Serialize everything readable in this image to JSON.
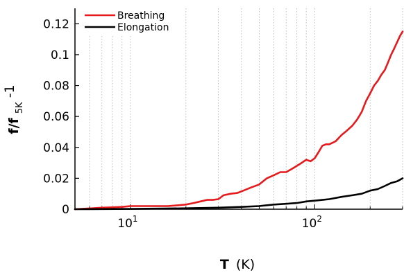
{
  "chart_data": {
    "type": "line",
    "xlabel": {
      "main": "T",
      "unit": "(K)"
    },
    "ylabel": {
      "f": "f/f",
      "sub": "5K",
      "tail": "-1"
    },
    "x_scale": "log",
    "xlim": [
      5,
      300
    ],
    "ylim": [
      0,
      0.13
    ],
    "grid": "vertical dotted (log minor ticks)",
    "legend_position": "top-left",
    "y_ticks": [
      "0",
      "0.02",
      "0.04",
      "0.06",
      "0.08",
      "0.1",
      "0.12"
    ],
    "x_ticks": [
      {
        "base": "10",
        "exp": "1"
      },
      {
        "base": "10",
        "exp": "2"
      }
    ],
    "series": [
      {
        "name": "Breathing",
        "color": "#e41a1c",
        "x": [
          5,
          6,
          7,
          8,
          9,
          10,
          12,
          14,
          16,
          18,
          20,
          22,
          24,
          26,
          28,
          30,
          32,
          35,
          38,
          41,
          45,
          50,
          55,
          60,
          65,
          70,
          75,
          80,
          85,
          90,
          95,
          100,
          105,
          110,
          115,
          120,
          125,
          130,
          140,
          150,
          160,
          170,
          180,
          190,
          200,
          210,
          220,
          230,
          240,
          250,
          260,
          270,
          280,
          290,
          300
        ],
        "y": [
          0.0,
          0.0005,
          0.001,
          0.0012,
          0.0015,
          0.002,
          0.002,
          0.002,
          0.002,
          0.0025,
          0.003,
          0.004,
          0.005,
          0.006,
          0.006,
          0.0065,
          0.009,
          0.01,
          0.0105,
          0.012,
          0.014,
          0.016,
          0.02,
          0.022,
          0.024,
          0.024,
          0.026,
          0.028,
          0.03,
          0.032,
          0.031,
          0.033,
          0.037,
          0.041,
          0.042,
          0.042,
          0.043,
          0.044,
          0.048,
          0.051,
          0.054,
          0.058,
          0.063,
          0.07,
          0.075,
          0.08,
          0.083,
          0.087,
          0.09,
          0.095,
          0.1,
          0.104,
          0.108,
          0.112,
          0.115
        ]
      },
      {
        "name": "Elongation",
        "color": "#000000",
        "x": [
          5,
          10,
          15,
          20,
          30,
          40,
          50,
          60,
          70,
          80,
          90,
          100,
          110,
          120,
          140,
          160,
          180,
          200,
          220,
          240,
          260,
          280,
          300
        ],
        "y": [
          0.0,
          0.0002,
          0.0004,
          0.0006,
          0.001,
          0.0015,
          0.002,
          0.003,
          0.0035,
          0.004,
          0.005,
          0.0055,
          0.006,
          0.0065,
          0.008,
          0.009,
          0.01,
          0.012,
          0.013,
          0.015,
          0.017,
          0.018,
          0.02
        ]
      }
    ]
  }
}
